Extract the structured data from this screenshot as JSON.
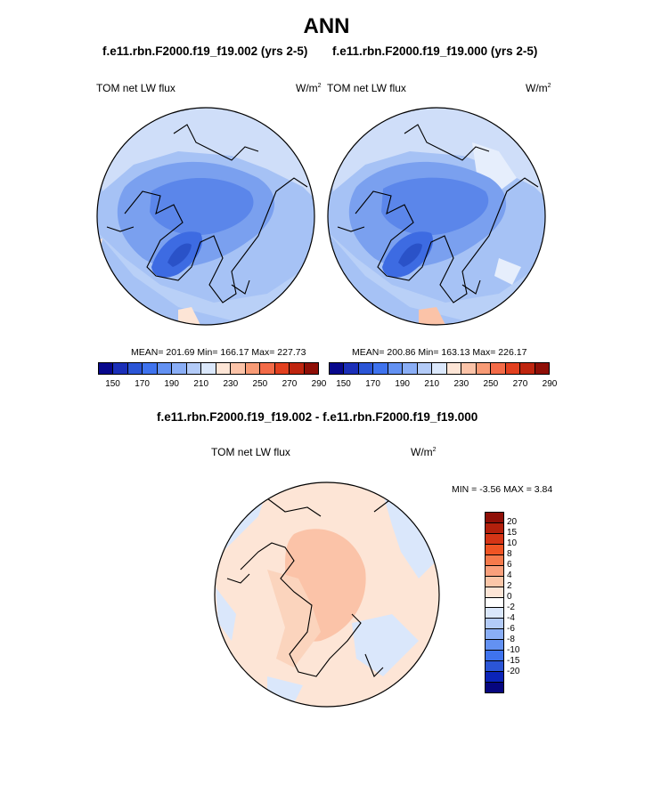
{
  "title": "ANN",
  "panels": [
    {
      "case": "f.e11.rbn.F2000.f19_f19.002 (yrs 2-5)",
      "variable": "TOM net LW flux",
      "units_base": "W/m",
      "units_exp": "2",
      "stats": "MEAN= 201.69  Min= 166.17  Max= 227.73"
    },
    {
      "case": "f.e11.rbn.F2000.f19_f19.000 (yrs 2-5)",
      "variable": "TOM net LW flux",
      "units_base": "W/m",
      "units_exp": "2",
      "stats": "MEAN= 200.86  Min= 163.13  Max= 226.17"
    }
  ],
  "top_colorbar": {
    "colors": [
      "#08088c",
      "#1b2fb8",
      "#2b55d6",
      "#3f73ee",
      "#6391f2",
      "#8aaef6",
      "#b3cbf8",
      "#dae7fb",
      "#fde5d6",
      "#fbc3a8",
      "#f89b76",
      "#f36b48",
      "#e2401f",
      "#bf250f",
      "#8f0f07"
    ],
    "labels": [
      "150",
      "170",
      "190",
      "210",
      "230",
      "250",
      "270",
      "290"
    ]
  },
  "diff": {
    "case": "f.e11.rbn.F2000.f19_f19.002 - f.e11.rbn.F2000.f19_f19.000",
    "variable": "TOM net LW flux",
    "units_base": "W/m",
    "units_exp": "2",
    "minmax": "MIN =  -3.56 MAX =   3.84"
  },
  "diff_colorbar": {
    "colors": [
      "#8f0f07",
      "#b3200c",
      "#d53516",
      "#ef5424",
      "#f57a4c",
      "#f9a07c",
      "#fbc6a8",
      "#fde5d6",
      "#ffffff",
      "#dae7fb",
      "#b3cbf8",
      "#8aaef6",
      "#6391f2",
      "#3f73ee",
      "#2b55d6",
      "#0b24b8",
      "#06067f"
    ],
    "labels": [
      "20",
      "15",
      "10",
      "8",
      "6",
      "4",
      "2",
      "0",
      "-2",
      "-4",
      "-6",
      "-8",
      "-10",
      "-15",
      "-20"
    ]
  }
}
